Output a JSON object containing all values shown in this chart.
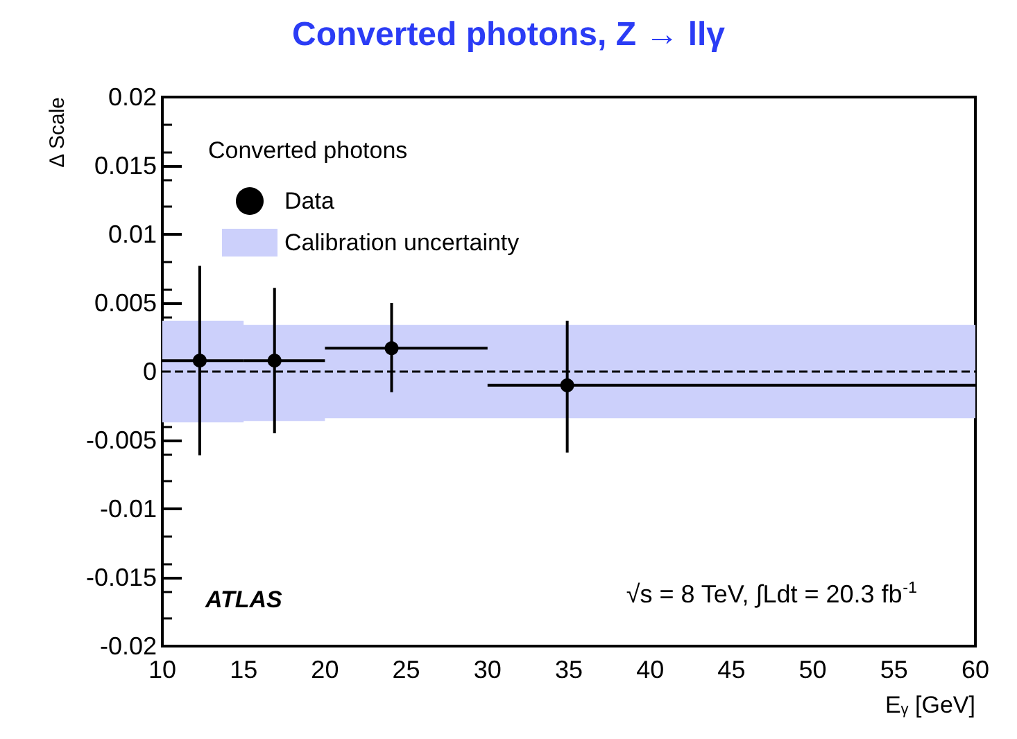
{
  "chart_data": {
    "type": "scatter",
    "title": "Converted photons, Z → llγ",
    "xlabel": "E$_{γ}$ [GeV]",
    "ylabel": "Δ Scale",
    "legend_title": "Converted photons",
    "legend": "top left",
    "ref_lines": [
      {
        "axis": "y",
        "value": 0,
        "color": "#000000",
        "line_style": "dashed"
      }
    ],
    "annotations": [
      "ATLAS",
      "√s = 8 TeV, ∫Ldt = 20.3 fb$^{-1}$"
    ],
    "xlim": [
      10,
      60
    ],
    "xticks": [
      10,
      15,
      20,
      25,
      30,
      35,
      40,
      45,
      50,
      55,
      60
    ],
    "ylim": [
      -0.02,
      0.02
    ],
    "yticks": [
      -0.02,
      -0.015,
      -0.01,
      -0.005,
      0,
      0.005,
      0.01,
      0.015,
      0.02
    ],
    "series": [
      {
        "name": "Data",
        "marker": "circle",
        "color": "#000000",
        "x": [
          12.3,
          16.9,
          24.1,
          34.9
        ],
        "values": [
          0.0008,
          0.0008,
          0.0017,
          -0.001
        ],
        "errors": [
          [
            -0.0061,
            0.0077
          ],
          [
            -0.0045,
            0.0061
          ],
          [
            -0.0015,
            0.005
          ],
          [
            -0.0059,
            0.0037
          ]
        ],
        "xerrors": [
          [
            10,
            15
          ],
          [
            15,
            20
          ],
          [
            20,
            30
          ],
          [
            30,
            60
          ]
        ]
      },
      {
        "name": "Calibration uncertainty",
        "type": "step",
        "color": "#ccd0fb",
        "x": [
          10,
          15,
          20,
          60
        ],
        "values": [
          null,
          null,
          null,
          null
        ],
        "lower": [
          -0.0037,
          -0.0036,
          -0.0034,
          -0.0034
        ],
        "upper": [
          0.0037,
          0.0034,
          0.0034,
          0.0034
        ]
      }
    ]
  }
}
